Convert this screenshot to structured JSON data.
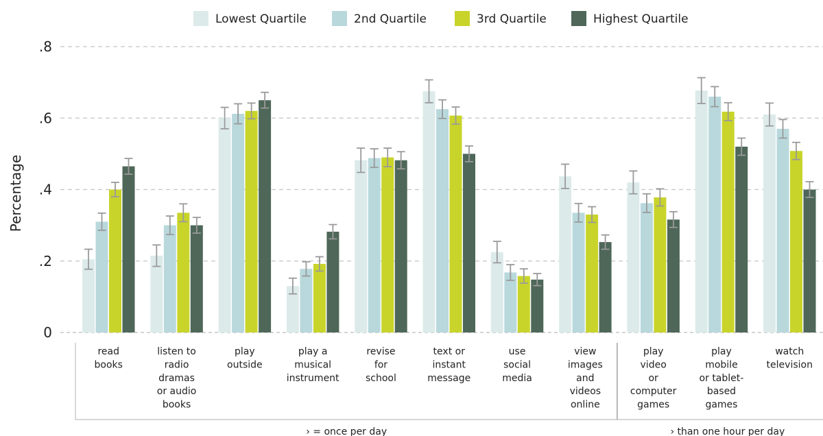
{
  "chart_data": {
    "type": "bar",
    "ylabel": "Percentage",
    "ylim": [
      0,
      0.8
    ],
    "yticks": [
      0,
      0.2,
      0.4,
      0.6,
      0.8
    ],
    "ytick_labels": [
      "0",
      ".2",
      ".4",
      ".6",
      ".8"
    ],
    "grid": true,
    "legend_position": "top",
    "categories": [
      [
        "read",
        "books"
      ],
      [
        "listen to",
        "radio",
        "dramas",
        "or audio",
        "books"
      ],
      [
        "play",
        "outside"
      ],
      [
        "play a",
        "musical",
        "instrument"
      ],
      [
        "revise",
        "for",
        "school"
      ],
      [
        "text or",
        "instant",
        "message"
      ],
      [
        "use",
        "social",
        "media"
      ],
      [
        "view",
        "images",
        "and",
        "videos",
        "online"
      ],
      [
        "play",
        "video",
        "or",
        "computer",
        "games"
      ],
      [
        "play",
        "mobile",
        "or tablet-",
        "based",
        "games"
      ],
      [
        "watch",
        "television"
      ]
    ],
    "groups": [
      {
        "label": "› = once per day",
        "start": 0,
        "end": 7
      },
      {
        "label": "› than one hour per day",
        "start": 8,
        "end": 10
      }
    ],
    "series": [
      {
        "name": "Lowest Quartile",
        "color": "#dcebea",
        "values": [
          0.205,
          0.215,
          0.6,
          0.13,
          0.482,
          0.675,
          0.225,
          0.437,
          0.42,
          0.677,
          0.61
        ],
        "errors": [
          0.028,
          0.03,
          0.03,
          0.022,
          0.034,
          0.032,
          0.03,
          0.034,
          0.032,
          0.036,
          0.032
        ]
      },
      {
        "name": "2nd Quartile",
        "color": "#b8d8dc",
        "values": [
          0.31,
          0.3,
          0.612,
          0.178,
          0.488,
          0.625,
          0.168,
          0.335,
          0.362,
          0.66,
          0.57
        ],
        "errors": [
          0.024,
          0.026,
          0.028,
          0.02,
          0.026,
          0.026,
          0.022,
          0.026,
          0.026,
          0.028,
          0.026
        ]
      },
      {
        "name": "3rd Quartile",
        "color": "#c8d42a",
        "values": [
          0.4,
          0.335,
          0.62,
          0.192,
          0.49,
          0.607,
          0.158,
          0.33,
          0.378,
          0.618,
          0.508
        ],
        "errors": [
          0.02,
          0.025,
          0.022,
          0.02,
          0.026,
          0.024,
          0.02,
          0.022,
          0.024,
          0.025,
          0.024
        ]
      },
      {
        "name": "Highest Quartile",
        "color": "#4e6759",
        "values": [
          0.465,
          0.3,
          0.65,
          0.282,
          0.482,
          0.5,
          0.148,
          0.253,
          0.316,
          0.52,
          0.4
        ],
        "errors": [
          0.022,
          0.022,
          0.022,
          0.02,
          0.024,
          0.022,
          0.017,
          0.02,
          0.022,
          0.024,
          0.022
        ]
      }
    ]
  }
}
